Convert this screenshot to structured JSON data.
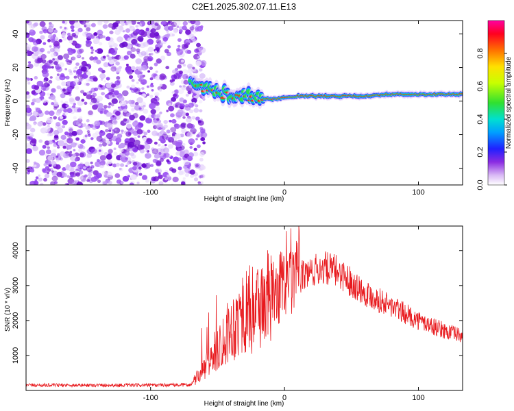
{
  "page_title": "C2E1.2025.302.07.11.E13",
  "chart_data": [
    {
      "type": "heatmap",
      "title": "C2E1.2025.302.07.11.E13",
      "xlabel": "Height of straight line (km)",
      "ylabel": "Frequency (Hz)",
      "xlim": [
        -193,
        133
      ],
      "ylim": [
        -50,
        48
      ],
      "xticks": [
        -100,
        0,
        100
      ],
      "yticks": [
        -40,
        -20,
        0,
        20,
        40
      ],
      "colorbar": {
        "label": "Normalized spectral amplitude",
        "range": [
          0,
          1
        ],
        "ticks": [
          "0.0",
          "0.2",
          "0.4",
          "0.6",
          "0.8"
        ],
        "tick_values": [
          0,
          0.2,
          0.4,
          0.6,
          0.8
        ]
      },
      "noise_region": {
        "x_range": [
          -193,
          -63
        ],
        "y_range": [
          -50,
          48
        ]
      },
      "signal_track": [
        {
          "x": -70,
          "f": 10
        },
        {
          "x": -60,
          "f": 7
        },
        {
          "x": -50,
          "f": 5
        },
        {
          "x": -40,
          "f": 4
        },
        {
          "x": -30,
          "f": 3
        },
        {
          "x": -20,
          "f": 2
        },
        {
          "x": -10,
          "f": 1
        },
        {
          "x": 0,
          "f": 2
        },
        {
          "x": 10,
          "f": 3
        },
        {
          "x": 20,
          "f": 3
        },
        {
          "x": 40,
          "f": 3
        },
        {
          "x": 60,
          "f": 3
        },
        {
          "x": 80,
          "f": 4
        },
        {
          "x": 100,
          "f": 4
        },
        {
          "x": 120,
          "f": 4
        },
        {
          "x": 133,
          "f": 4
        }
      ],
      "grid": false
    },
    {
      "type": "line",
      "xlabel": "Height of straight line (km)",
      "ylabel": "SNR (10 * v/v)",
      "xlim": [
        -193,
        133
      ],
      "ylim": [
        0,
        4700
      ],
      "xticks": [
        -100,
        0,
        100
      ],
      "yticks": [
        1000,
        2000,
        3000,
        4000
      ],
      "series": [
        {
          "color": "#e8191d",
          "x": [
            -193,
            -150,
            -100,
            -70,
            -60,
            -50,
            -40,
            -30,
            -20,
            -10,
            0,
            10,
            20,
            30,
            40,
            50,
            60,
            70,
            80,
            90,
            100,
            110,
            120,
            133
          ],
          "y": [
            150,
            150,
            150,
            160,
            600,
            1200,
            1800,
            2200,
            2400,
            2700,
            3000,
            3200,
            3400,
            3500,
            3400,
            3100,
            2800,
            2600,
            2400,
            2200,
            2000,
            1850,
            1700,
            1550
          ]
        }
      ],
      "grid": false
    }
  ]
}
